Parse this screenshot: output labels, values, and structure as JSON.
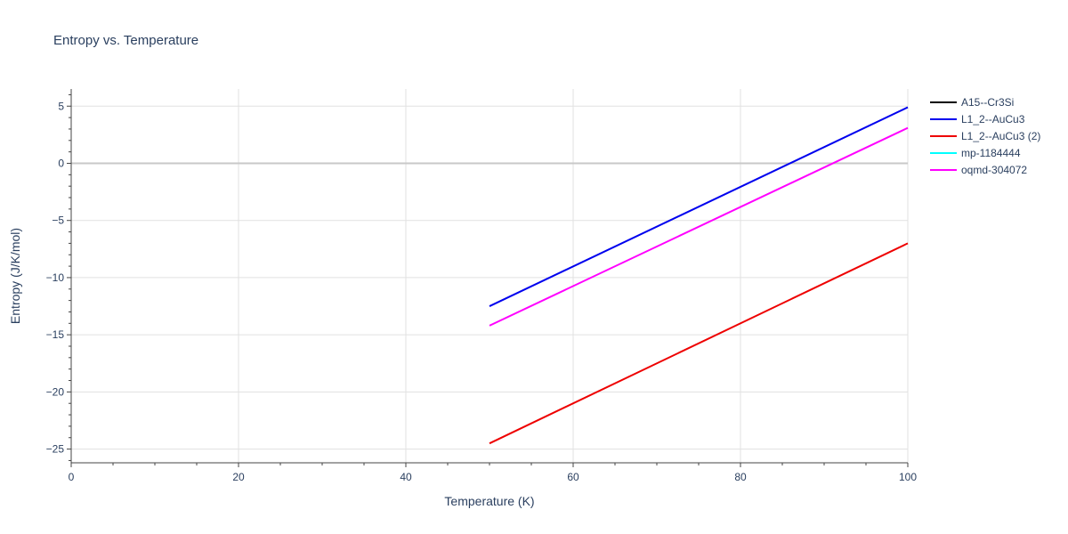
{
  "chart_data": {
    "type": "line",
    "title": "Entropy vs. Temperature",
    "xlabel": "Temperature (K)",
    "ylabel": "Entropy (J/K/mol)",
    "xlim": [
      0,
      100
    ],
    "ylim": [
      -26.2,
      6.5
    ],
    "xticks": [
      0,
      20,
      40,
      60,
      80,
      100
    ],
    "xtick_labels": [
      "0",
      "20",
      "40",
      "60",
      "80",
      "100"
    ],
    "yticks": [
      -25,
      -20,
      -15,
      -10,
      -5,
      0,
      5
    ],
    "ytick_labels": [
      "−25",
      "−20",
      "−15",
      "−10",
      "−5",
      "0",
      "5"
    ],
    "grid": true,
    "legend_position": "top-right",
    "series": [
      {
        "name": "A15--Cr3Si",
        "color": "#000000",
        "x": [],
        "y": []
      },
      {
        "name": "L1_2--AuCu3",
        "color": "#0000ee",
        "x": [
          50,
          100
        ],
        "y": [
          -12.5,
          4.9
        ]
      },
      {
        "name": "L1_2--AuCu3 (2)",
        "color": "#ee0000",
        "x": [
          50,
          100
        ],
        "y": [
          -24.5,
          -7.0
        ]
      },
      {
        "name": "mp-1184444",
        "color": "#00ffff",
        "x": [],
        "y": []
      },
      {
        "name": "oqmd-304072",
        "color": "#ff00ff",
        "x": [
          50,
          100
        ],
        "y": [
          -14.2,
          3.1
        ]
      }
    ]
  }
}
